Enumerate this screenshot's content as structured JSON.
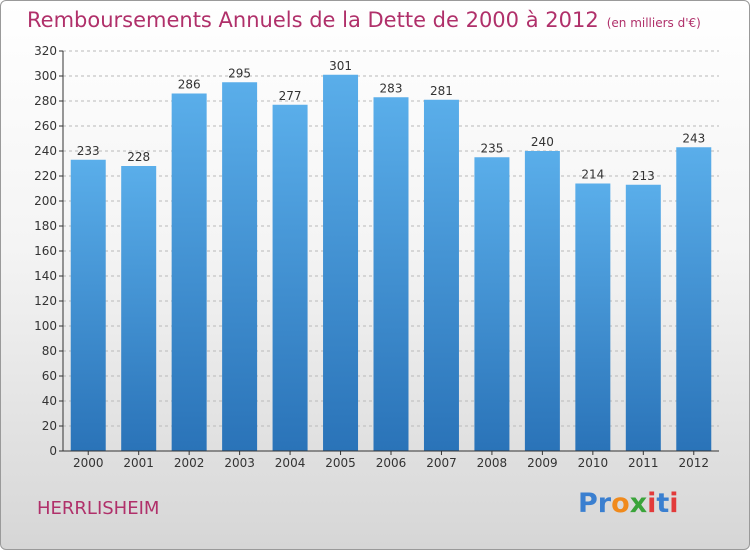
{
  "header": {
    "title": "Remboursements Annuels de la Dette de 2000 à 2012",
    "subtitle": "(en milliers d'€)"
  },
  "footer": {
    "commune": "HERRLISHEIM"
  },
  "logo": {
    "letters": [
      "P",
      "r",
      "o",
      "x",
      "i",
      "t",
      "i"
    ],
    "colors": [
      "#3a7fd0",
      "#3a7fd0",
      "#f08a1c",
      "#3aa43a",
      "#e23a3a",
      "#3a7fd0",
      "#e23a3a"
    ]
  },
  "colors": {
    "bar_top": "#5aaeea",
    "bar_bottom": "#2a73b8",
    "axis": "#333333",
    "grid": "#b9b9b9",
    "title": "#b0306a"
  },
  "chart_data": {
    "type": "bar",
    "categories": [
      "2000",
      "2001",
      "2002",
      "2003",
      "2004",
      "2005",
      "2006",
      "2007",
      "2008",
      "2009",
      "2010",
      "2011",
      "2012"
    ],
    "values": [
      233,
      228,
      286,
      295,
      277,
      301,
      283,
      281,
      235,
      240,
      214,
      213,
      243
    ],
    "ylim": [
      0,
      320
    ],
    "yticks": [
      0,
      20,
      40,
      60,
      80,
      100,
      120,
      140,
      160,
      180,
      200,
      220,
      240,
      260,
      280,
      300,
      320
    ],
    "grid": true,
    "grid_style": "dashed-horizontal",
    "data_labels": true
  }
}
